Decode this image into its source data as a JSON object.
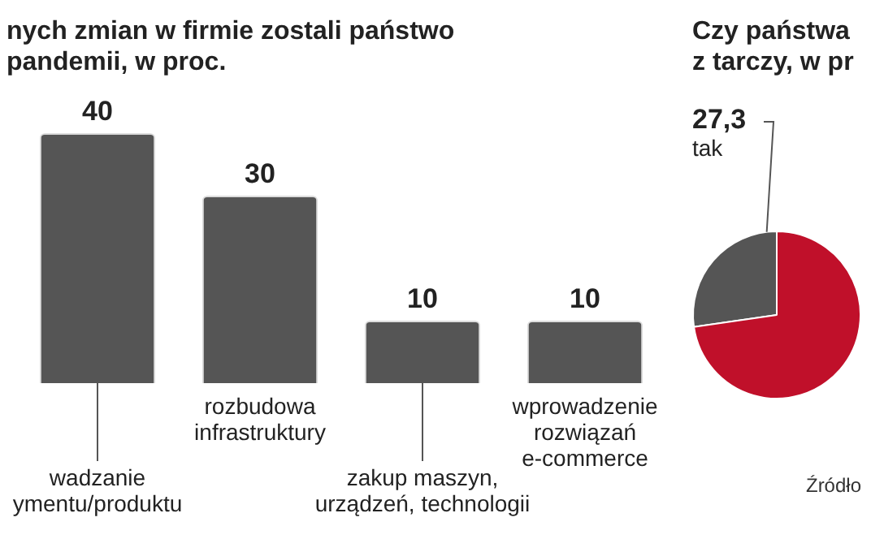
{
  "chart_data": [
    {
      "type": "bar",
      "title": "nych zmian w firmie zostali państwo\npandemii, w proc.",
      "categories": [
        "wadzanie\nymentu/produktu",
        "rozbudowa\ninfrastruktury",
        "zakup maszyn,\nurządzeń, technologii",
        "wprowadzenie\nrozwiązań\ne-commerce"
      ],
      "values": [
        40,
        30,
        10,
        10
      ],
      "color": "#555555",
      "data_labels": true
    },
    {
      "type": "pie",
      "title": "Czy państwa\nz tarczy, w pr",
      "categories": [
        "tak",
        null
      ],
      "values": [
        27.3,
        72.7
      ],
      "colors": [
        "#555555",
        "#c0102a"
      ],
      "value_labels": [
        "27,3",
        null
      ],
      "annotations": [
        "Źródło"
      ]
    }
  ]
}
